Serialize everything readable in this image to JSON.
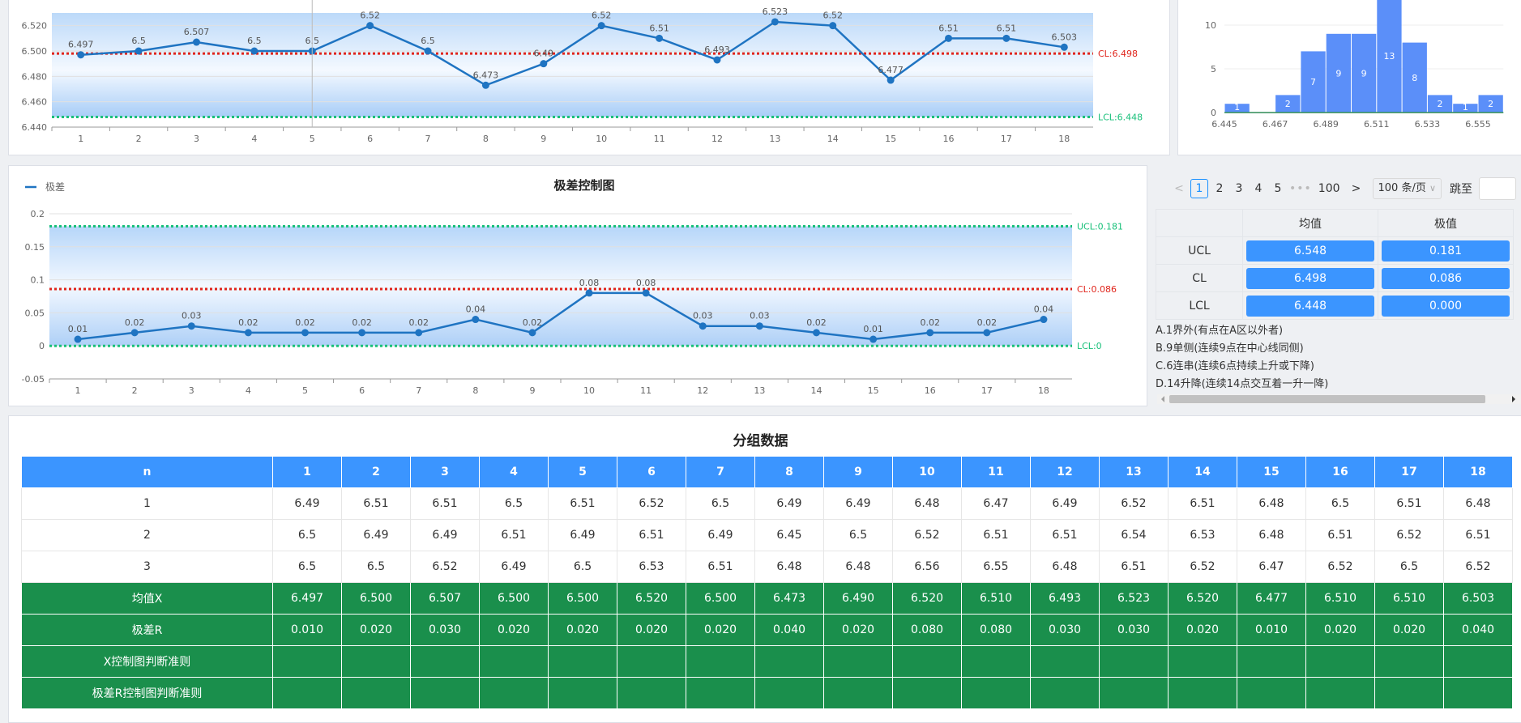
{
  "chart_data": [
    {
      "type": "line",
      "title": "",
      "x": [
        1,
        2,
        3,
        4,
        5,
        6,
        7,
        8,
        9,
        10,
        11,
        12,
        13,
        14,
        15,
        16,
        17,
        18
      ],
      "values": [
        6.497,
        6.5,
        6.507,
        6.5,
        6.5,
        6.52,
        6.5,
        6.473,
        6.49,
        6.52,
        6.51,
        6.493,
        6.523,
        6.52,
        6.477,
        6.51,
        6.51,
        6.503
      ],
      "point_labels": [
        "6.497",
        "6.5",
        "6.507",
        "6.5",
        "6.5",
        "6.52",
        "6.5",
        "6.473",
        "6.49",
        "6.52",
        "6.51",
        "6.493",
        "6.523",
        "6.52",
        "6.477",
        "6.51",
        "6.51",
        "6.503"
      ],
      "ylim": [
        6.44,
        6.53
      ],
      "yticks": [
        6.44,
        6.46,
        6.48,
        6.5,
        6.52
      ],
      "ytick_labels": [
        "6.440",
        "6.460",
        "6.480",
        "6.500",
        "6.520"
      ],
      "cl": 6.498,
      "cl_label": "CL:6.498",
      "lcl": 6.448,
      "lcl_label": "LCL:6.448"
    },
    {
      "type": "bar",
      "title": "",
      "values": [
        1,
        0,
        2,
        7,
        9,
        9,
        13,
        8,
        2,
        1,
        2
      ],
      "value_labels": [
        "1",
        "",
        "2",
        "7",
        "9",
        "9",
        "13",
        "8",
        "2",
        "1",
        "2"
      ],
      "xtick_labels": [
        "6.445",
        "6.467",
        "6.489",
        "6.511",
        "6.533",
        "6.555"
      ],
      "ylim": [
        0,
        13
      ],
      "yticks": [
        0,
        5,
        10
      ],
      "ytick_labels": [
        "0",
        "5",
        "10"
      ]
    },
    {
      "type": "line",
      "title": "极差控制图",
      "legend": "极差",
      "x": [
        1,
        2,
        3,
        4,
        5,
        6,
        7,
        8,
        9,
        10,
        11,
        12,
        13,
        14,
        15,
        16,
        17,
        18
      ],
      "values": [
        0.01,
        0.02,
        0.03,
        0.02,
        0.02,
        0.02,
        0.02,
        0.04,
        0.02,
        0.08,
        0.08,
        0.03,
        0.03,
        0.02,
        0.01,
        0.02,
        0.02,
        0.04
      ],
      "point_labels": [
        "0.01",
        "0.02",
        "0.03",
        "0.02",
        "0.02",
        "0.02",
        "0.02",
        "0.04",
        "0.02",
        "0.08",
        "0.08",
        "0.03",
        "0.03",
        "0.02",
        "0.01",
        "0.02",
        "0.02",
        "0.04"
      ],
      "ylim": [
        -0.05,
        0.2
      ],
      "yticks": [
        -0.05,
        0,
        0.05,
        0.1,
        0.15,
        0.2
      ],
      "ytick_labels": [
        "-0.05",
        "0",
        "0.05",
        "0.1",
        "0.15",
        "0.2"
      ],
      "ucl": 0.181,
      "ucl_label": "UCL:0.181",
      "cl": 0.086,
      "cl_label": "CL:0.086",
      "lcl": 0,
      "lcl_label": "LCL:0"
    }
  ],
  "colors": {
    "line": "#1f74c2",
    "cl": "#e0241b",
    "limit": "#19c07a",
    "hist": "#5b8ff9",
    "header": "#3b95ff",
    "green": "#1a8f4c"
  },
  "pagination": {
    "prev": "<",
    "pages": [
      "1",
      "2",
      "3",
      "4",
      "5"
    ],
    "ellipsis": "•••",
    "last": "100",
    "next": ">",
    "page_size": "100 条/页",
    "size_arrow": "∨",
    "jump_label": "跳至"
  },
  "stats": {
    "col_mean": "均值",
    "col_range": "极值",
    "rows": [
      {
        "label": "UCL",
        "mean": "6.548",
        "range": "0.181"
      },
      {
        "label": "CL",
        "mean": "6.498",
        "range": "0.086"
      },
      {
        "label": "LCL",
        "mean": "6.448",
        "range": "0.000"
      }
    ]
  },
  "rules": [
    "A.1界外(有点在A区以外者)",
    "B.9单侧(连续9点在中心线同侧)",
    "C.6连串(连续6点持续上升或下降)",
    "D.14升降(连续14点交互着一升一降)"
  ],
  "group_table": {
    "title": "分组数据",
    "n_label": "n",
    "cols": [
      "1",
      "2",
      "3",
      "4",
      "5",
      "6",
      "7",
      "8",
      "9",
      "10",
      "11",
      "12",
      "13",
      "14",
      "15",
      "16",
      "17",
      "18"
    ],
    "rows": [
      {
        "label": "1",
        "cells": [
          "6.49",
          "6.51",
          "6.51",
          "6.5",
          "6.51",
          "6.52",
          "6.5",
          "6.49",
          "6.49",
          "6.48",
          "6.47",
          "6.49",
          "6.52",
          "6.51",
          "6.48",
          "6.5",
          "6.51",
          "6.48"
        ]
      },
      {
        "label": "2",
        "cells": [
          "6.5",
          "6.49",
          "6.49",
          "6.51",
          "6.49",
          "6.51",
          "6.49",
          "6.45",
          "6.5",
          "6.52",
          "6.51",
          "6.51",
          "6.54",
          "6.53",
          "6.48",
          "6.51",
          "6.52",
          "6.51"
        ]
      },
      {
        "label": "3",
        "cells": [
          "6.5",
          "6.5",
          "6.52",
          "6.49",
          "6.5",
          "6.53",
          "6.51",
          "6.48",
          "6.48",
          "6.56",
          "6.55",
          "6.48",
          "6.51",
          "6.52",
          "6.47",
          "6.52",
          "6.5",
          "6.52"
        ]
      }
    ],
    "mean_label": "均值X",
    "means": [
      "6.497",
      "6.500",
      "6.507",
      "6.500",
      "6.500",
      "6.520",
      "6.500",
      "6.473",
      "6.490",
      "6.520",
      "6.510",
      "6.493",
      "6.523",
      "6.520",
      "6.477",
      "6.510",
      "6.510",
      "6.503"
    ],
    "range_label": "极差R",
    "ranges": [
      "0.010",
      "0.020",
      "0.030",
      "0.020",
      "0.020",
      "0.020",
      "0.020",
      "0.040",
      "0.020",
      "0.080",
      "0.080",
      "0.030",
      "0.030",
      "0.020",
      "0.010",
      "0.020",
      "0.020",
      "0.040"
    ],
    "x_rule_label": "X控制图判断准则",
    "r_rule_label": "极差R控制图判断准则"
  }
}
